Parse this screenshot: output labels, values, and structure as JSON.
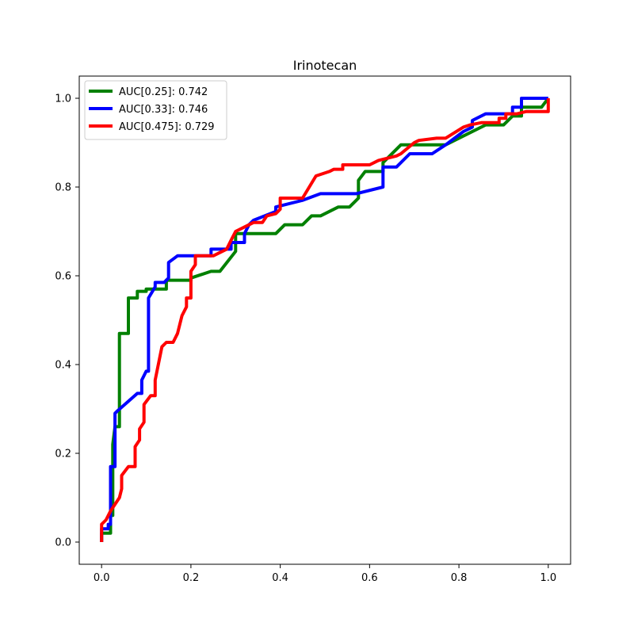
{
  "chart_data": {
    "type": "line",
    "title": "Irinotecan",
    "xlabel": "",
    "ylabel": "",
    "xlim": [
      -0.05,
      1.05
    ],
    "ylim": [
      -0.05,
      1.05
    ],
    "xticks": [
      "0.0",
      "0.2",
      "0.4",
      "0.6",
      "0.8",
      "1.0"
    ],
    "yticks": [
      "0.0",
      "0.2",
      "0.4",
      "0.6",
      "0.8",
      "1.0"
    ],
    "grid": false,
    "legend_position": "top-left",
    "series": [
      {
        "name": "AUC[0.25]: 0.742",
        "color": "#008000",
        "x": [
          0.0,
          0.0,
          0.02,
          0.02,
          0.025,
          0.025,
          0.03,
          0.04,
          0.04,
          0.06,
          0.06,
          0.08,
          0.08,
          0.1,
          0.1,
          0.145,
          0.145,
          0.165,
          0.2,
          0.2,
          0.245,
          0.265,
          0.3,
          0.3,
          0.33,
          0.39,
          0.41,
          0.45,
          0.47,
          0.49,
          0.53,
          0.555,
          0.575,
          0.575,
          0.59,
          0.63,
          0.63,
          0.67,
          0.72,
          0.77,
          0.86,
          0.9,
          0.92,
          0.94,
          0.94,
          0.985,
          1.0,
          1.0
        ],
        "y": [
          0.0,
          0.02,
          0.02,
          0.06,
          0.06,
          0.22,
          0.26,
          0.26,
          0.47,
          0.47,
          0.55,
          0.55,
          0.565,
          0.565,
          0.57,
          0.57,
          0.59,
          0.59,
          0.59,
          0.595,
          0.61,
          0.61,
          0.655,
          0.695,
          0.695,
          0.695,
          0.715,
          0.715,
          0.735,
          0.735,
          0.755,
          0.755,
          0.775,
          0.815,
          0.835,
          0.835,
          0.855,
          0.895,
          0.895,
          0.895,
          0.94,
          0.94,
          0.96,
          0.96,
          0.98,
          0.98,
          1.0,
          1.0
        ]
      },
      {
        "name": "AUC[0.33]: 0.746",
        "color": "#0000ff",
        "x": [
          0.0,
          0.0,
          0.015,
          0.015,
          0.02,
          0.02,
          0.03,
          0.03,
          0.035,
          0.08,
          0.09,
          0.09,
          0.1,
          0.105,
          0.105,
          0.12,
          0.12,
          0.14,
          0.15,
          0.15,
          0.17,
          0.245,
          0.245,
          0.29,
          0.29,
          0.32,
          0.32,
          0.33,
          0.34,
          0.39,
          0.39,
          0.45,
          0.49,
          0.57,
          0.63,
          0.63,
          0.66,
          0.69,
          0.69,
          0.74,
          0.77,
          0.81,
          0.83,
          0.83,
          0.86,
          0.92,
          0.92,
          0.94,
          0.94,
          0.97,
          1.0
        ],
        "y": [
          0.0,
          0.03,
          0.03,
          0.04,
          0.04,
          0.17,
          0.17,
          0.29,
          0.295,
          0.335,
          0.335,
          0.365,
          0.385,
          0.385,
          0.55,
          0.575,
          0.585,
          0.585,
          0.595,
          0.63,
          0.645,
          0.645,
          0.66,
          0.66,
          0.675,
          0.675,
          0.695,
          0.715,
          0.725,
          0.745,
          0.755,
          0.77,
          0.785,
          0.785,
          0.8,
          0.845,
          0.845,
          0.875,
          0.875,
          0.875,
          0.895,
          0.925,
          0.935,
          0.95,
          0.965,
          0.965,
          0.98,
          0.98,
          1.0,
          1.0,
          1.0
        ]
      },
      {
        "name": "AUC[0.475]: 0.729",
        "color": "#ff0000",
        "x": [
          0.0,
          0.0,
          0.01,
          0.02,
          0.03,
          0.04,
          0.045,
          0.045,
          0.06,
          0.075,
          0.075,
          0.085,
          0.085,
          0.095,
          0.095,
          0.11,
          0.12,
          0.12,
          0.135,
          0.145,
          0.16,
          0.17,
          0.18,
          0.19,
          0.19,
          0.2,
          0.2,
          0.21,
          0.21,
          0.25,
          0.28,
          0.29,
          0.3,
          0.32,
          0.34,
          0.36,
          0.37,
          0.39,
          0.4,
          0.4,
          0.43,
          0.45,
          0.48,
          0.51,
          0.52,
          0.54,
          0.54,
          0.58,
          0.6,
          0.62,
          0.66,
          0.67,
          0.7,
          0.71,
          0.75,
          0.77,
          0.81,
          0.825,
          0.85,
          0.89,
          0.89,
          0.905,
          0.905,
          0.93,
          0.95,
          0.99,
          1.0,
          1.0
        ],
        "y": [
          0.0,
          0.04,
          0.05,
          0.07,
          0.085,
          0.1,
          0.12,
          0.15,
          0.17,
          0.17,
          0.215,
          0.23,
          0.255,
          0.27,
          0.31,
          0.33,
          0.33,
          0.365,
          0.44,
          0.45,
          0.45,
          0.47,
          0.51,
          0.53,
          0.55,
          0.55,
          0.61,
          0.625,
          0.645,
          0.645,
          0.66,
          0.68,
          0.7,
          0.71,
          0.72,
          0.72,
          0.735,
          0.74,
          0.75,
          0.775,
          0.775,
          0.775,
          0.825,
          0.835,
          0.84,
          0.84,
          0.85,
          0.85,
          0.85,
          0.86,
          0.87,
          0.875,
          0.9,
          0.905,
          0.91,
          0.91,
          0.935,
          0.94,
          0.945,
          0.945,
          0.955,
          0.955,
          0.965,
          0.965,
          0.97,
          0.97,
          0.97,
          1.0
        ]
      }
    ]
  }
}
